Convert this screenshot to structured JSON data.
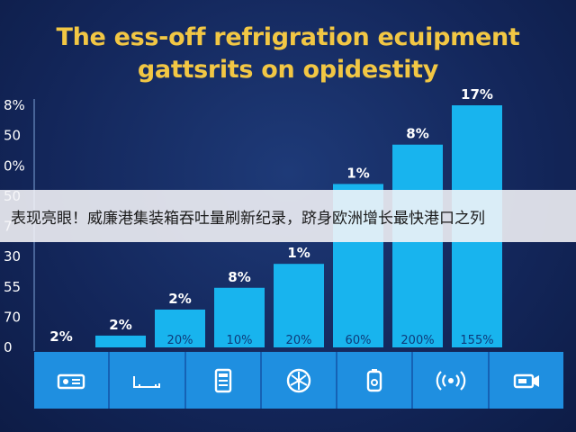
{
  "chart_data": {
    "type": "bar",
    "title": "The ess-off refrigration ecuipment gattsrits on opidestity",
    "y_tick_labels": [
      "0",
      "70",
      "55",
      "30",
      "7",
      "50",
      "0%",
      "50",
      "8%"
    ],
    "ylim": [
      0,
      8
    ],
    "bars": [
      {
        "value": 0,
        "top_label": "2%",
        "inner_label": ""
      },
      {
        "value": 0.39,
        "top_label": "2%",
        "inner_label": ""
      },
      {
        "value": 1.25,
        "top_label": "2%",
        "inner_label": "20%"
      },
      {
        "value": 1.97,
        "top_label": "8%",
        "inner_label": "10%"
      },
      {
        "value": 2.76,
        "top_label": "1%",
        "inner_label": "20%"
      },
      {
        "value": 5.4,
        "top_label": "1%",
        "inner_label": "60%"
      },
      {
        "value": 6.7,
        "top_label": "8%",
        "inner_label": "200%"
      },
      {
        "value": 8,
        "top_label": "17%",
        "inner_label": "155%"
      }
    ],
    "grid": false,
    "colors": {
      "bar": "#18b4ee",
      "title": "#f2c744",
      "text": "#ffffff"
    }
  },
  "icons": [
    {
      "name": "projector-icon"
    },
    {
      "name": "tray-icon"
    },
    {
      "name": "fridge-icon"
    },
    {
      "name": "fan-icon"
    },
    {
      "name": "container-icon"
    },
    {
      "name": "wireless-icon"
    },
    {
      "name": "camera-icon"
    }
  ],
  "banner": {
    "text": "表现亮眼！威廉港集装箱吞吐量刷新纪录，跻身欧洲增长最快港口之列"
  }
}
